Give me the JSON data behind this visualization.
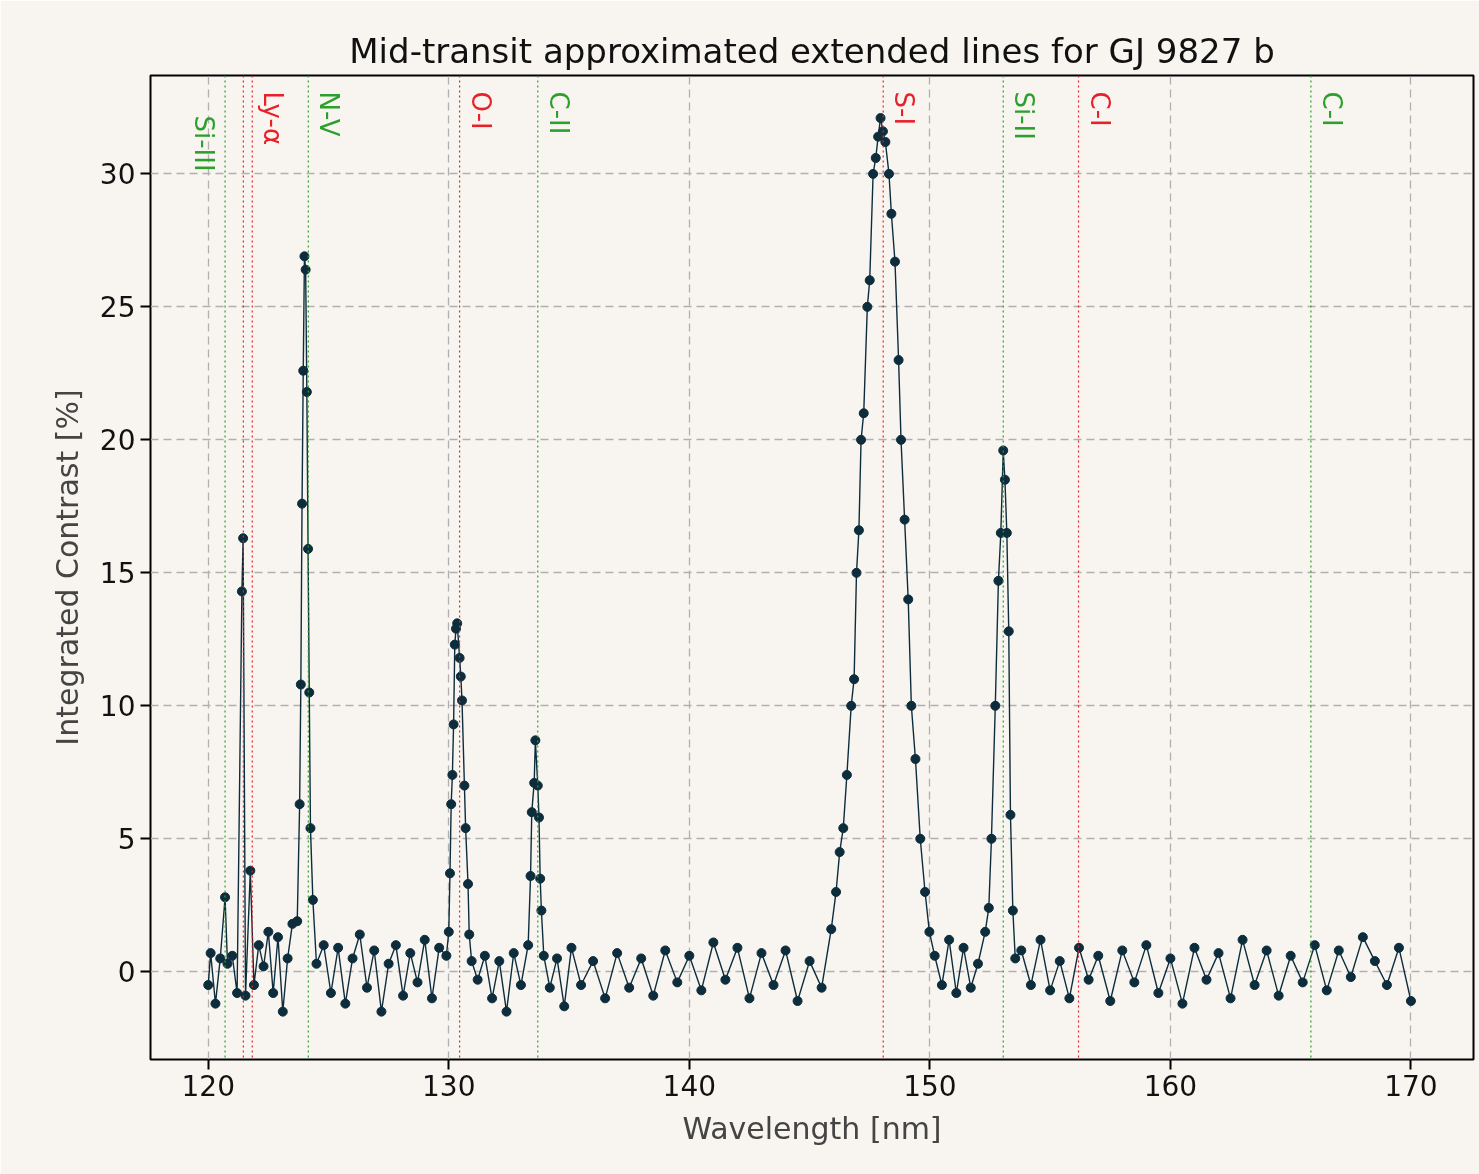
{
  "chart_data": {
    "type": "line",
    "title": "Mid-transit approximated extended lines for GJ 9827 b",
    "xlabel": "Wavelength [nm]",
    "ylabel": "Integrated Contrast [%]",
    "xlim": [
      117.6,
      172.6
    ],
    "ylim": [
      -3.3,
      33.7
    ],
    "xticks": [
      120,
      130,
      140,
      150,
      160,
      170
    ],
    "yticks": [
      0,
      5,
      10,
      15,
      20,
      25,
      30
    ],
    "grid": true,
    "marker": "circle",
    "line_style": "solid",
    "series": [
      {
        "color": "#0d2d3c",
        "x": [
          120.0,
          120.1,
          120.3,
          120.5,
          120.7,
          120.8,
          121.0,
          121.2,
          121.4,
          121.45,
          121.55,
          121.75,
          121.9,
          122.1,
          122.3,
          122.5,
          122.7,
          122.9,
          123.1,
          123.3,
          123.5,
          123.7,
          123.8,
          123.85,
          123.9,
          123.95,
          124.0,
          124.05,
          124.1,
          124.15,
          124.2,
          124.25,
          124.35,
          124.5,
          124.8,
          125.1,
          125.4,
          125.7,
          126.0,
          126.3,
          126.6,
          126.9,
          127.2,
          127.5,
          127.8,
          128.1,
          128.4,
          128.7,
          129.0,
          129.3,
          129.6,
          129.9,
          130.0,
          130.05,
          130.1,
          130.15,
          130.2,
          130.25,
          130.3,
          130.35,
          130.45,
          130.5,
          130.55,
          130.65,
          130.7,
          130.8,
          130.85,
          130.95,
          131.2,
          131.5,
          131.8,
          132.1,
          132.4,
          132.7,
          133.0,
          133.3,
          133.4,
          133.45,
          133.55,
          133.6,
          133.7,
          133.75,
          133.8,
          133.85,
          133.95,
          134.2,
          134.5,
          134.8,
          135.1,
          135.5,
          136.0,
          136.5,
          137.0,
          137.5,
          138.0,
          138.5,
          139.0,
          139.5,
          140.0,
          140.5,
          141.0,
          141.5,
          142.0,
          142.5,
          143.0,
          143.5,
          144.0,
          144.5,
          145.0,
          145.5,
          145.9,
          146.1,
          146.25,
          146.4,
          146.55,
          146.73,
          146.85,
          146.95,
          147.05,
          147.14,
          147.25,
          147.4,
          147.5,
          147.64,
          147.75,
          147.85,
          147.95,
          148.05,
          148.15,
          148.3,
          148.4,
          148.55,
          148.7,
          148.8,
          148.95,
          149.1,
          149.23,
          149.4,
          149.6,
          149.8,
          149.98,
          150.2,
          150.5,
          150.8,
          151.1,
          151.4,
          151.7,
          152.0,
          152.3,
          152.45,
          152.56,
          152.72,
          152.85,
          152.95,
          153.05,
          153.12,
          153.2,
          153.28,
          153.35,
          153.45,
          153.55,
          153.8,
          154.2,
          154.6,
          155.0,
          155.4,
          155.8,
          156.2,
          156.6,
          157.0,
          157.5,
          158.0,
          158.5,
          159.0,
          159.5,
          160.0,
          160.5,
          161.0,
          161.5,
          162.0,
          162.5,
          163.0,
          163.5,
          164.0,
          164.5,
          165.0,
          165.5,
          166.0,
          166.5,
          167.0,
          167.5,
          168.0,
          168.5,
          169.0,
          169.5,
          170.0
        ],
        "values": [
          -0.5,
          0.7,
          -1.2,
          0.5,
          2.8,
          0.3,
          0.6,
          -0.8,
          14.3,
          16.3,
          -0.9,
          3.8,
          -0.5,
          1.0,
          0.2,
          1.5,
          -0.8,
          1.3,
          -1.5,
          0.5,
          1.8,
          1.9,
          6.3,
          10.8,
          17.6,
          22.6,
          26.9,
          26.4,
          21.8,
          15.9,
          10.5,
          5.4,
          2.7,
          0.3,
          1.0,
          -0.8,
          0.9,
          -1.2,
          0.5,
          1.4,
          -0.6,
          0.8,
          -1.5,
          0.3,
          1.0,
          -0.9,
          0.7,
          -0.4,
          1.2,
          -1.0,
          0.9,
          0.6,
          1.5,
          3.7,
          6.3,
          7.4,
          9.3,
          12.3,
          12.9,
          13.1,
          11.8,
          11.1,
          10.2,
          7.0,
          5.4,
          3.3,
          1.4,
          0.4,
          -0.3,
          0.6,
          -1.0,
          0.4,
          -1.5,
          0.7,
          -0.5,
          1.0,
          3.6,
          6.0,
          7.1,
          8.7,
          7.0,
          5.8,
          3.5,
          2.3,
          0.6,
          -0.6,
          0.5,
          -1.3,
          0.9,
          -0.5,
          0.4,
          -1.0,
          0.7,
          -0.6,
          0.5,
          -0.9,
          0.8,
          -0.4,
          0.6,
          -0.7,
          1.1,
          -0.3,
          0.9,
          -1.0,
          0.7,
          -0.5,
          0.8,
          -1.1,
          0.4,
          -0.6,
          1.6,
          3.0,
          4.5,
          5.4,
          7.4,
          10.0,
          11.0,
          15.0,
          16.6,
          20.0,
          21.0,
          25.0,
          26.0,
          30.0,
          30.6,
          31.4,
          32.1,
          31.6,
          31.2,
          30.0,
          28.5,
          26.7,
          23.0,
          20.0,
          17.0,
          14.0,
          10.0,
          8.0,
          5.0,
          3.0,
          1.5,
          0.6,
          -0.5,
          1.2,
          -0.8,
          0.9,
          -0.6,
          0.3,
          1.5,
          2.4,
          5.0,
          10.0,
          14.7,
          16.5,
          19.6,
          18.5,
          16.5,
          12.8,
          5.9,
          2.3,
          0.5,
          0.8,
          -0.5,
          1.2,
          -0.7,
          0.4,
          -1.0,
          0.9,
          -0.3,
          0.6,
          -1.1,
          0.8,
          -0.4,
          1.0,
          -0.8,
          0.5,
          -1.2,
          0.9,
          -0.3,
          0.7,
          -1.0,
          1.2,
          -0.5,
          0.8,
          -0.9,
          0.6,
          -0.4,
          1.0,
          -0.7,
          0.8,
          -0.2,
          1.3,
          0.4,
          -0.5,
          0.9,
          -1.1
        ]
      }
    ],
    "ref_lines": [
      {
        "axis": "x",
        "value": 120.7,
        "label": "Si-III",
        "color": "#2ca02c",
        "line_style": "dotted"
      },
      {
        "axis": "x",
        "value": 121.46,
        "label": null,
        "color": "#e8202a",
        "line_style": "dotted"
      },
      {
        "axis": "x",
        "value": 121.83,
        "label": "Ly-α",
        "color": "#e8202a",
        "line_style": "dotted"
      },
      {
        "axis": "x",
        "value": 124.16,
        "label": "N-V",
        "color": "#2ca02c",
        "line_style": "dotted"
      },
      {
        "axis": "x",
        "value": 130.45,
        "label": "O-I",
        "color": "#e8202a",
        "line_style": "dotted"
      },
      {
        "axis": "x",
        "value": 133.7,
        "label": "C-II",
        "color": "#2ca02c",
        "line_style": "dotted"
      },
      {
        "axis": "x",
        "value": 148.06,
        "label": "S-I",
        "color": "#e8202a",
        "line_style": "dotted"
      },
      {
        "axis": "x",
        "value": 153.05,
        "label": "Si-II",
        "color": "#2ca02c",
        "line_style": "dotted"
      },
      {
        "axis": "x",
        "value": 156.18,
        "label": "C-I",
        "color": "#e8202a",
        "line_style": "dotted"
      },
      {
        "axis": "x",
        "value": 165.84,
        "label": "C-I",
        "color": "#2ca02c",
        "line_style": "dotted"
      }
    ]
  }
}
